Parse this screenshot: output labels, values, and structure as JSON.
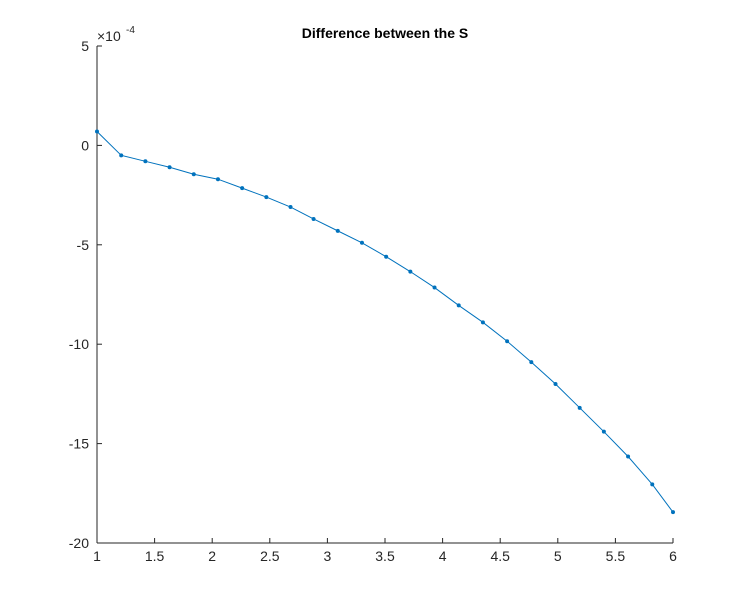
{
  "chart_data": {
    "type": "line",
    "title": "Difference between the S",
    "xlabel": "",
    "ylabel": "",
    "xlim": [
      1,
      6
    ],
    "ylim": [
      -20,
      5
    ],
    "y_multiplier_prefix": "×10",
    "y_multiplier_exponent": "-4",
    "x_ticks": [
      "1",
      "1.5",
      "2",
      "2.5",
      "3",
      "3.5",
      "4",
      "4.5",
      "5",
      "5.5",
      "6"
    ],
    "x_tick_values": [
      1,
      1.5,
      2,
      2.5,
      3,
      3.5,
      4,
      4.5,
      5,
      5.5,
      6
    ],
    "y_ticks": [
      "5",
      "0",
      "-5",
      "-10",
      "-15",
      "-20"
    ],
    "y_tick_values": [
      5,
      0,
      -5,
      -10,
      -15,
      -20
    ],
    "grid": false,
    "line_color": "#0072BD",
    "series": [
      {
        "marker": "dot",
        "x": [
          1.0,
          1.21,
          1.42,
          1.63,
          1.84,
          2.05,
          2.26,
          2.47,
          2.68,
          2.88,
          3.09,
          3.3,
          3.51,
          3.72,
          3.93,
          4.14,
          4.35,
          4.56,
          4.77,
          4.98,
          5.19,
          5.4,
          5.61,
          5.82,
          6.0
        ],
        "y": [
          0.7,
          -0.5,
          -0.8,
          -1.1,
          -1.45,
          -1.7,
          -2.15,
          -2.6,
          -3.1,
          -3.7,
          -4.3,
          -4.9,
          -5.6,
          -6.35,
          -7.15,
          -8.05,
          -8.9,
          -9.85,
          -10.9,
          -12.0,
          -13.2,
          -14.4,
          -15.65,
          -17.05,
          -18.45
        ]
      }
    ]
  }
}
